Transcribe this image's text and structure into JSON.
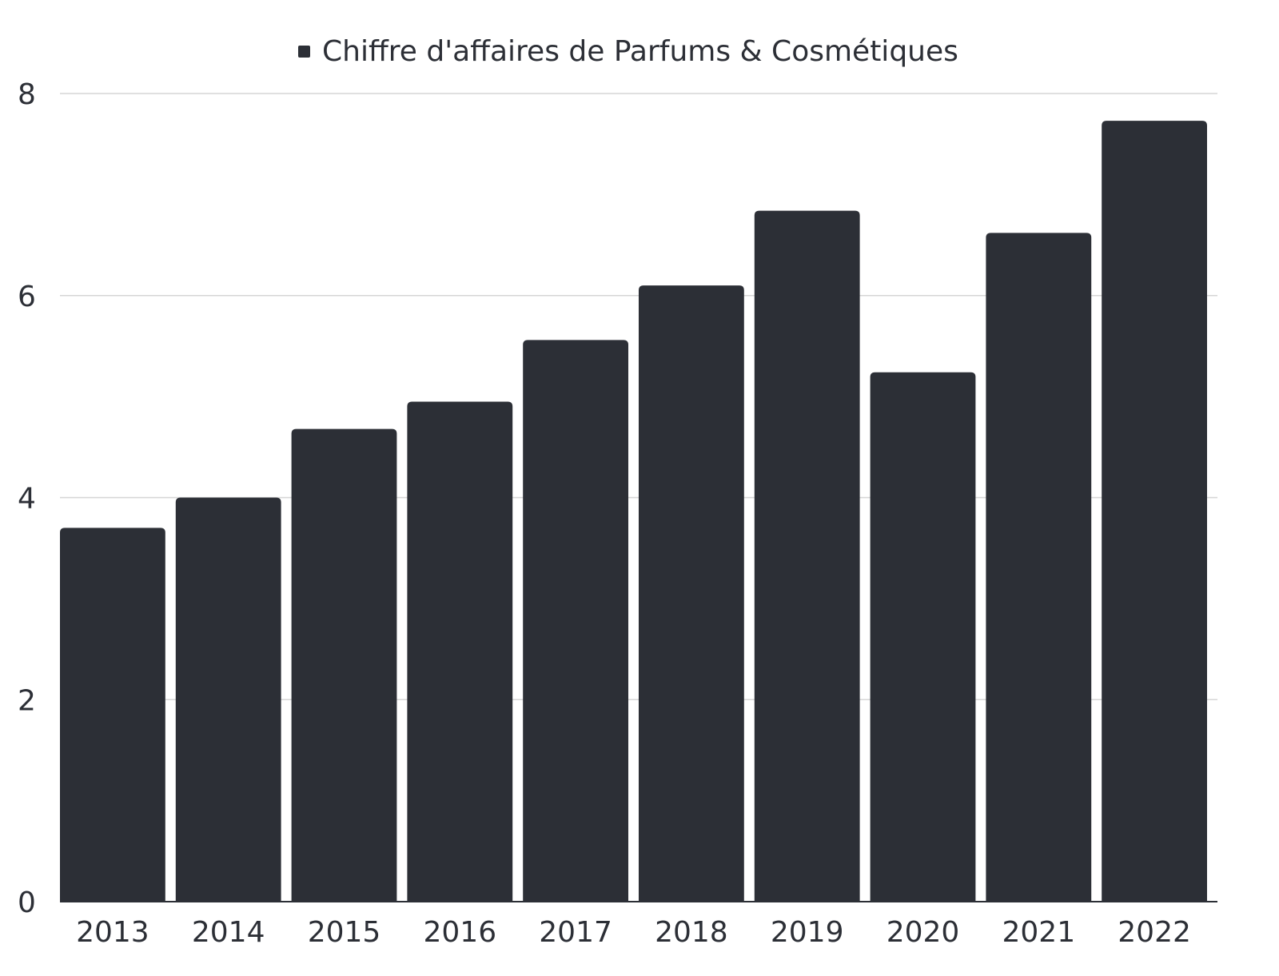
{
  "chart_data": {
    "type": "bar",
    "categories": [
      "2013",
      "2014",
      "2015",
      "2016",
      "2017",
      "2018",
      "2019",
      "2020",
      "2021",
      "2022"
    ],
    "series": [
      {
        "name": "Chiffre d'affaires de Parfums & Cosmétiques",
        "values": [
          3.7,
          4.0,
          4.68,
          4.95,
          5.56,
          6.1,
          6.84,
          5.24,
          6.62,
          7.73
        ]
      }
    ],
    "ylim": [
      0,
      8
    ],
    "yticks": [
      "0",
      "2",
      "4",
      "6",
      "8"
    ],
    "grid": true,
    "legend_position": "top-center",
    "colors": {
      "bar": "#2c2f36",
      "grid": "#d6d6d6",
      "text": "#2c2f36"
    }
  }
}
